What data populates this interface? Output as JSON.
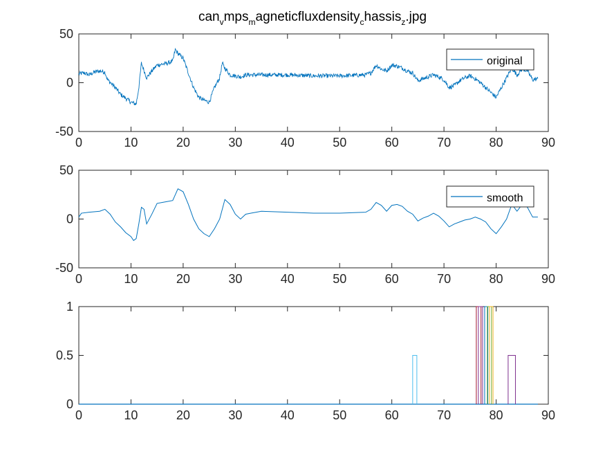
{
  "title": {
    "parts": [
      {
        "text": "can",
        "sub": false
      },
      {
        "text": "v",
        "sub": true
      },
      {
        "text": "mps",
        "sub": false
      },
      {
        "text": "m",
        "sub": true
      },
      {
        "text": "agneticfluxdensity",
        "sub": false
      },
      {
        "text": "c",
        "sub": true
      },
      {
        "text": "hassis",
        "sub": false
      },
      {
        "text": "z",
        "sub": true
      },
      {
        "text": ".jpg",
        "sub": false
      }
    ]
  },
  "colors": {
    "series_blue": "#0072BD",
    "axes": "#262626",
    "step_colors": [
      "#4DBEEE",
      "#A2142F",
      "#7E2F8E",
      "#0072BD",
      "#77AC30",
      "#EDB120",
      "#7E2F8E"
    ]
  },
  "chart_data": [
    {
      "type": "line",
      "legend": "original",
      "legend_position": "top-right",
      "xlim": [
        0,
        90
      ],
      "ylim": [
        -50,
        50
      ],
      "xticks": [
        0,
        10,
        20,
        30,
        40,
        50,
        60,
        70,
        80,
        90
      ],
      "yticks": [
        -50,
        0,
        50
      ],
      "noise_amplitude": 2.2,
      "x": [
        0,
        1,
        2,
        3,
        4,
        5,
        5.5,
        7,
        8,
        9,
        10,
        11,
        11.5,
        12,
        13,
        14,
        15,
        16,
        17,
        18,
        18.5,
        19,
        20,
        21,
        22,
        23,
        24,
        25,
        26,
        27,
        27.5,
        28,
        29,
        30,
        31,
        32,
        35,
        40,
        45,
        50,
        55,
        56,
        57,
        58,
        59,
        60,
        61,
        62,
        63,
        64,
        65,
        66,
        67,
        68,
        69,
        70,
        71,
        72,
        73,
        74,
        75,
        76,
        77,
        78,
        79,
        80,
        81,
        82,
        83,
        84,
        85,
        86,
        87,
        88
      ],
      "y": [
        9,
        10,
        8,
        11,
        12,
        11,
        3,
        -5,
        -12,
        -16,
        -20,
        -22,
        -5,
        20,
        5,
        12,
        18,
        19,
        20,
        22,
        34,
        30,
        25,
        10,
        -5,
        -15,
        -18,
        -20,
        -5,
        5,
        20,
        15,
        8,
        7,
        6,
        8,
        8,
        8,
        7,
        7,
        8,
        10,
        18,
        14,
        12,
        18,
        17,
        15,
        12,
        10,
        2,
        4,
        6,
        8,
        6,
        3,
        -5,
        -3,
        2,
        5,
        7,
        4,
        0,
        -5,
        -10,
        -15,
        -5,
        5,
        15,
        8,
        14,
        12,
        3,
        4
      ]
    },
    {
      "type": "line",
      "legend": "smooth",
      "legend_position": "top-right",
      "xlim": [
        0,
        90
      ],
      "ylim": [
        -50,
        50
      ],
      "xticks": [
        0,
        10,
        20,
        30,
        40,
        50,
        60,
        70,
        80,
        90
      ],
      "yticks": [
        -50,
        0,
        50
      ],
      "x": [
        0,
        0.5,
        2,
        4,
        5,
        6,
        7,
        8,
        9,
        10,
        10.5,
        11,
        11.5,
        12,
        12.5,
        13,
        14,
        15,
        16,
        17,
        18,
        19,
        20,
        21,
        22,
        23,
        24,
        25,
        26,
        27,
        28,
        29,
        30,
        31,
        32,
        33,
        35,
        40,
        45,
        50,
        55,
        56,
        57,
        58,
        59,
        60,
        61,
        62,
        63,
        64,
        65,
        66,
        67,
        68,
        69,
        70,
        71,
        72,
        73,
        74,
        75,
        76,
        77,
        78,
        79,
        80,
        81,
        82,
        83,
        84,
        85,
        86,
        87,
        88
      ],
      "y": [
        2,
        6,
        7,
        8,
        10,
        5,
        -3,
        -8,
        -14,
        -18,
        -22,
        -20,
        -5,
        12,
        10,
        -5,
        5,
        16,
        17,
        18,
        19,
        31,
        28,
        15,
        0,
        -10,
        -15,
        -18,
        -10,
        0,
        20,
        15,
        5,
        0,
        5,
        6,
        8,
        7,
        6,
        6,
        7,
        10,
        17,
        14,
        8,
        14,
        15,
        13,
        8,
        5,
        -2,
        1,
        3,
        6,
        3,
        -2,
        -8,
        -5,
        -3,
        -1,
        0,
        2,
        0,
        -3,
        -10,
        -15,
        -8,
        0,
        15,
        8,
        15,
        12,
        2,
        2
      ]
    },
    {
      "type": "line",
      "xlim": [
        0,
        90
      ],
      "ylim": [
        0,
        1
      ],
      "xticks": [
        0,
        10,
        20,
        30,
        40,
        50,
        60,
        70,
        80,
        90
      ],
      "yticks": [
        0,
        0.5,
        1
      ],
      "baseline_end": 88,
      "pulses": [
        {
          "x0": 64,
          "x1": 64.8,
          "y": 0.5
        },
        {
          "x0": 76.2,
          "x1": 77.1,
          "y": 1
        },
        {
          "x0": 76.6,
          "x1": 77.4,
          "y": 1
        },
        {
          "x0": 77.8,
          "x1": 78.4,
          "y": 1
        },
        {
          "x0": 78.3,
          "x1": 79.1,
          "y": 1
        },
        {
          "x0": 78.7,
          "x1": 79.4,
          "y": 1
        },
        {
          "x0": 82.3,
          "x1": 83.7,
          "y": 0.5
        }
      ]
    }
  ]
}
